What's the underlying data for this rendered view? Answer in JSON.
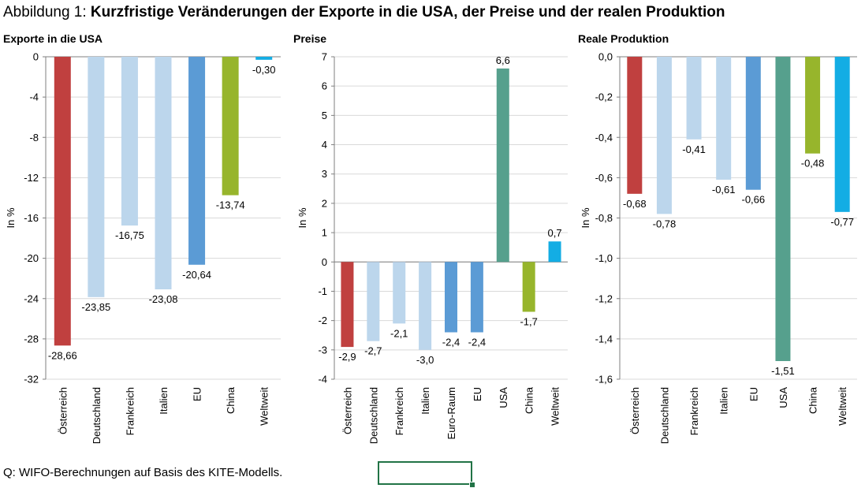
{
  "figure": {
    "title_prefix": "Abbildung 1: ",
    "title_bold": "Kurzfristige Veränderungen der Exporte in die USA, der Preise und der realen Produktion",
    "source": "Q: WIFO-Berechnungen auf Basis des KITE-Modells."
  },
  "colors": {
    "Österreich": "#c0403f",
    "Deutschland": "#bcd6ec",
    "Frankreich": "#bcd6ec",
    "Italien": "#bcd6ec",
    "Euro-Raum": "#5b9bd5",
    "EU": "#5b9bd5",
    "USA": "#56a08d",
    "China": "#97b52c",
    "Weltweit": "#13ade4",
    "grid": "#d9d9d9",
    "axis": "#7f7f7f",
    "selection": "#217346"
  },
  "chart_data": [
    {
      "type": "bar",
      "title": "Exporte in die USA",
      "ylabel": "In %",
      "categories": [
        "Österreich",
        "Deutschland",
        "Frankreich",
        "Italien",
        "EU",
        "China",
        "Weltweit"
      ],
      "values": [
        -28.66,
        -23.85,
        -16.75,
        -23.08,
        -20.64,
        -13.74,
        -0.3
      ],
      "value_labels": [
        "-28,66",
        "-23,85",
        "-16,75",
        "-23,08",
        "-20,64",
        "-13,74",
        "-0,30"
      ],
      "ylim": [
        -32,
        0
      ],
      "yticks": [
        0,
        -4,
        -8,
        -12,
        -16,
        -20,
        -24,
        -28,
        -32
      ],
      "ytick_labels": [
        "0",
        "-4",
        "-8",
        "-12",
        "-16",
        "-20",
        "-24",
        "-28",
        "-32"
      ],
      "grid": true,
      "legend": "none"
    },
    {
      "type": "bar",
      "title": "Preise",
      "ylabel": "In %",
      "categories": [
        "Österreich",
        "Deutschland",
        "Frankreich",
        "Italien",
        "Euro-Raum",
        "EU",
        "USA",
        "China",
        "Weltweit"
      ],
      "values": [
        -2.9,
        -2.7,
        -2.1,
        -3.0,
        -2.4,
        -2.4,
        6.6,
        -1.7,
        0.7
      ],
      "value_labels": [
        "-2,9",
        "-2,7",
        "-2,1",
        "-3,0",
        "-2,4",
        "-2,4",
        "6,6",
        "-1,7",
        "0,7"
      ],
      "ylim": [
        -4,
        7
      ],
      "yticks": [
        7,
        6,
        5,
        4,
        3,
        2,
        1,
        0,
        -1,
        -2,
        -3,
        -4
      ],
      "ytick_labels": [
        "7",
        "6",
        "5",
        "4",
        "3",
        "2",
        "1",
        "0",
        "-1",
        "-2",
        "-3",
        "-4"
      ],
      "grid": true,
      "legend": "none"
    },
    {
      "type": "bar",
      "title": "Reale Produktion",
      "ylabel": "In %",
      "categories": [
        "Österreich",
        "Deutschland",
        "Frankreich",
        "Italien",
        "EU",
        "USA",
        "China",
        "Weltweit"
      ],
      "values": [
        -0.68,
        -0.78,
        -0.41,
        -0.61,
        -0.66,
        -1.51,
        -0.48,
        -0.77
      ],
      "value_labels": [
        "-0,68",
        "-0,78",
        "-0,41",
        "-0,61",
        "-0,66",
        "-1,51",
        "-0,48",
        "-0,77"
      ],
      "ylim": [
        -1.6,
        0
      ],
      "yticks": [
        0,
        -0.2,
        -0.4,
        -0.6,
        -0.8,
        -1.0,
        -1.2,
        -1.4,
        -1.6
      ],
      "ytick_labels": [
        "0,0",
        "-0,2",
        "-0,4",
        "-0,6",
        "-0,8",
        "-1,0",
        "-1,2",
        "-1,4",
        "-1,6"
      ],
      "grid": true,
      "legend": "none"
    }
  ]
}
